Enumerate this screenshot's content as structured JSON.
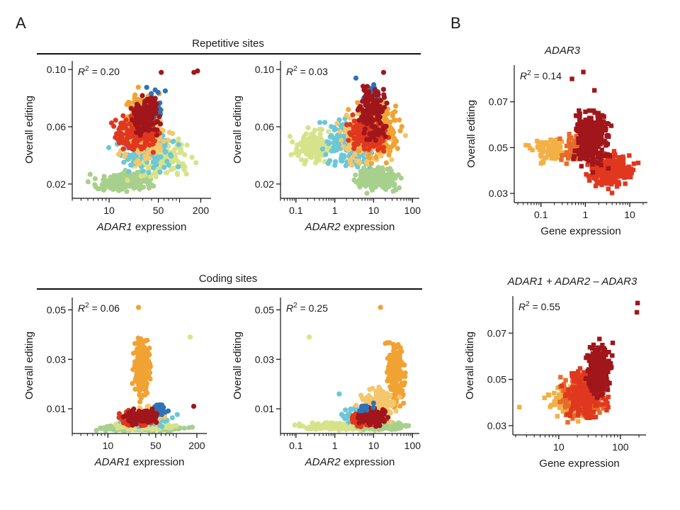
{
  "panel_labels": {
    "a": "A",
    "b": "B"
  },
  "group_titles": {
    "repetitive": "Repetitive sites",
    "coding": "Coding sites"
  },
  "chart_data": [
    {
      "id": "rep-adar1",
      "type": "scatter",
      "title": "",
      "subtitle": "",
      "r2_label": "R",
      "r2_value": "0.20",
      "xlabel_italic": "ADAR1",
      "xlabel_rest": " expression",
      "ylabel": "Overall editing",
      "xscale": "log",
      "xlim": [
        3,
        280
      ],
      "ylim": [
        0.01,
        0.106
      ],
      "xticks": [
        10,
        50,
        200
      ],
      "xtick_labels": [
        "10",
        "50",
        "200"
      ],
      "yticks": [
        0.02,
        0.06,
        0.1
      ],
      "ytick_labels": [
        "0.02",
        "0.06",
        "0.10"
      ],
      "marker": "circle",
      "clusters": [
        {
          "color": "#a8d08d",
          "x": [
            4.5,
            60
          ],
          "y": [
            0.012,
            0.03
          ],
          "n": 220,
          "seed": 11
        },
        {
          "color": "#d7e38a",
          "x": [
            12,
            190
          ],
          "y": [
            0.02,
            0.058
          ],
          "n": 170,
          "seed": 12
        },
        {
          "color": "#6cc7d6",
          "x": [
            8,
            120
          ],
          "y": [
            0.025,
            0.065
          ],
          "n": 120,
          "seed": 13
        },
        {
          "color": "#f5c66b",
          "x": [
            10,
            90
          ],
          "y": [
            0.03,
            0.078
          ],
          "n": 170,
          "seed": 14
        },
        {
          "color": "#f0a233",
          "x": [
            15,
            60
          ],
          "y": [
            0.045,
            0.092
          ],
          "n": 150,
          "seed": 15
        },
        {
          "color": "#2f72b8",
          "x": [
            30,
            70
          ],
          "y": [
            0.06,
            0.092
          ],
          "n": 30,
          "seed": 16
        },
        {
          "color": "#e0381f",
          "x": [
            10,
            60
          ],
          "y": [
            0.038,
            0.072
          ],
          "n": 170,
          "seed": 17
        },
        {
          "color": "#a0161b",
          "x": [
            18,
            60
          ],
          "y": [
            0.05,
            0.085
          ],
          "n": 150,
          "seed": 18
        }
      ],
      "points": [
        {
          "x": 160,
          "y": 0.098,
          "color": "#a0161b"
        },
        {
          "x": 180,
          "y": 0.099,
          "color": "#a0161b"
        },
        {
          "x": 55,
          "y": 0.098,
          "color": "#a0161b"
        }
      ]
    },
    {
      "id": "rep-adar2",
      "type": "scatter",
      "title": "",
      "subtitle": "",
      "r2_label": "R",
      "r2_value": "0.03",
      "xlabel_italic": "ADAR2",
      "xlabel_rest": " expression",
      "ylabel": "Overall editing",
      "xscale": "log",
      "xlim": [
        0.04,
        150
      ],
      "ylim": [
        0.01,
        0.106
      ],
      "xticks": [
        0.1,
        1,
        10,
        100
      ],
      "xtick_labels": [
        "0.1",
        "1",
        "10",
        "100"
      ],
      "yticks": [
        0.02,
        0.06,
        0.1
      ],
      "ytick_labels": [
        "0.02",
        "0.06",
        "0.10"
      ],
      "marker": "circle",
      "clusters": [
        {
          "color": "#d7e38a",
          "x": [
            0.06,
            1.5
          ],
          "y": [
            0.03,
            0.062
          ],
          "n": 150,
          "seed": 21
        },
        {
          "color": "#6cc7d6",
          "x": [
            0.3,
            25
          ],
          "y": [
            0.025,
            0.072
          ],
          "n": 170,
          "seed": 22
        },
        {
          "color": "#a8d08d",
          "x": [
            2,
            70
          ],
          "y": [
            0.012,
            0.035
          ],
          "n": 200,
          "seed": 23
        },
        {
          "color": "#f5c66b",
          "x": [
            0.7,
            70
          ],
          "y": [
            0.028,
            0.075
          ],
          "n": 170,
          "seed": 24
        },
        {
          "color": "#f0a233",
          "x": [
            2,
            80
          ],
          "y": [
            0.03,
            0.085
          ],
          "n": 200,
          "seed": 25
        },
        {
          "color": "#2f72b8",
          "x": [
            4,
            25
          ],
          "y": [
            0.07,
            0.095
          ],
          "n": 25,
          "seed": 26
        },
        {
          "color": "#e0381f",
          "x": [
            1.5,
            30
          ],
          "y": [
            0.04,
            0.07
          ],
          "n": 170,
          "seed": 27
        },
        {
          "color": "#a0161b",
          "x": [
            3,
            30
          ],
          "y": [
            0.045,
            0.095
          ],
          "n": 140,
          "seed": 28
        }
      ],
      "points": [
        {
          "x": 18,
          "y": 0.098,
          "color": "#a0161b"
        },
        {
          "x": 3.5,
          "y": 0.094,
          "color": "#2f72b8"
        }
      ]
    },
    {
      "id": "adar3",
      "type": "scatter",
      "title": "ADAR3",
      "subtitle": "",
      "r2_label": "R",
      "r2_value": "0.14",
      "xlabel_italic": "",
      "xlabel_rest": "Gene expression",
      "ylabel": "Overall editing",
      "xscale": "log",
      "xlim": [
        0.025,
        25
      ],
      "ylim": [
        0.026,
        0.086
      ],
      "xticks": [
        0.1,
        1,
        10
      ],
      "xtick_labels": [
        "0.1",
        "1",
        "10"
      ],
      "yticks": [
        0.03,
        0.05,
        0.07
      ],
      "ytick_labels": [
        "0.03",
        "0.05",
        "0.07"
      ],
      "marker": "square",
      "clusters": [
        {
          "color": "#f3b045",
          "x": [
            0.04,
            0.6
          ],
          "y": [
            0.042,
            0.056
          ],
          "n": 80,
          "seed": 31
        },
        {
          "color": "#e86a2a",
          "x": [
            0.2,
            1.5
          ],
          "y": [
            0.04,
            0.06
          ],
          "n": 70,
          "seed": 32
        },
        {
          "color": "#e0381f",
          "x": [
            0.8,
            18
          ],
          "y": [
            0.03,
            0.05
          ],
          "n": 260,
          "seed": 33
        },
        {
          "color": "#a0161b",
          "x": [
            0.4,
            5
          ],
          "y": [
            0.038,
            0.07
          ],
          "n": 280,
          "seed": 34
        }
      ],
      "points": [
        {
          "x": 0.9,
          "y": 0.083,
          "color": "#a0161b"
        },
        {
          "x": 0.5,
          "y": 0.08,
          "color": "#a0161b"
        },
        {
          "x": 1.6,
          "y": 0.075,
          "color": "#a0161b"
        }
      ]
    },
    {
      "id": "cod-adar1",
      "type": "scatter",
      "title": "",
      "subtitle": "",
      "r2_label": "R",
      "r2_value": "0.06",
      "xlabel_italic": "ADAR1",
      "xlabel_rest": " expression",
      "ylabel": "Overall editing",
      "xscale": "log",
      "xlim": [
        3,
        280
      ],
      "ylim": [
        0.0,
        0.055
      ],
      "xticks": [
        10,
        50,
        200
      ],
      "xtick_labels": [
        "10",
        "50",
        "200"
      ],
      "yticks": [
        0.01,
        0.03,
        0.05
      ],
      "ytick_labels": [
        "0.01",
        "0.03",
        "0.05"
      ],
      "marker": "circle",
      "clusters": [
        {
          "color": "#a8d08d",
          "x": [
            4.5,
            220
          ],
          "y": [
            0.0008,
            0.0035
          ],
          "n": 220,
          "seed": 41
        },
        {
          "color": "#d7e38a",
          "x": [
            8,
            150
          ],
          "y": [
            0.001,
            0.005
          ],
          "n": 150,
          "seed": 42
        },
        {
          "color": "#6cc7d6",
          "x": [
            10,
            120
          ],
          "y": [
            0.002,
            0.01
          ],
          "n": 90,
          "seed": 43
        },
        {
          "color": "#f0a233",
          "x": [
            22,
            45
          ],
          "y": [
            0.01,
            0.042
          ],
          "n": 230,
          "seed": 44
        },
        {
          "color": "#f5c66b",
          "x": [
            12,
            90
          ],
          "y": [
            0.002,
            0.012
          ],
          "n": 140,
          "seed": 45
        },
        {
          "color": "#2f72b8",
          "x": [
            40,
            80
          ],
          "y": [
            0.006,
            0.013
          ],
          "n": 25,
          "seed": 46
        },
        {
          "color": "#e0381f",
          "x": [
            12,
            70
          ],
          "y": [
            0.002,
            0.01
          ],
          "n": 130,
          "seed": 47
        },
        {
          "color": "#a0161b",
          "x": [
            15,
            70
          ],
          "y": [
            0.003,
            0.011
          ],
          "n": 130,
          "seed": 48
        }
      ],
      "points": [
        {
          "x": 28,
          "y": 0.051,
          "color": "#f0a233"
        },
        {
          "x": 160,
          "y": 0.039,
          "color": "#d7e38a"
        },
        {
          "x": 180,
          "y": 0.011,
          "color": "#a0161b"
        }
      ]
    },
    {
      "id": "cod-adar2",
      "type": "scatter",
      "title": "",
      "subtitle": "",
      "r2_label": "R",
      "r2_value": "0.25",
      "xlabel_italic": "ADAR2",
      "xlabel_rest": " expression",
      "ylabel": "Overall editing",
      "xscale": "log",
      "xlim": [
        0.04,
        150
      ],
      "ylim": [
        0.0,
        0.055
      ],
      "xticks": [
        0.1,
        1,
        10,
        100
      ],
      "xtick_labels": [
        "0.1",
        "1",
        "10",
        "100"
      ],
      "yticks": [
        0.01,
        0.03,
        0.05
      ],
      "ytick_labels": [
        "0.01",
        "0.03",
        "0.05"
      ],
      "marker": "circle",
      "clusters": [
        {
          "color": "#d7e38a",
          "x": [
            0.06,
            30
          ],
          "y": [
            0.0008,
            0.005
          ],
          "n": 220,
          "seed": 51
        },
        {
          "color": "#a8d08d",
          "x": [
            3,
            100
          ],
          "y": [
            0.001,
            0.005
          ],
          "n": 150,
          "seed": 52
        },
        {
          "color": "#6cc7d6",
          "x": [
            1,
            15
          ],
          "y": [
            0.003,
            0.012
          ],
          "n": 60,
          "seed": 53
        },
        {
          "color": "#f0a233",
          "x": [
            18,
            70
          ],
          "y": [
            0.008,
            0.04
          ],
          "n": 240,
          "seed": 54
        },
        {
          "color": "#f5c66b",
          "x": [
            3,
            60
          ],
          "y": [
            0.003,
            0.02
          ],
          "n": 140,
          "seed": 55
        },
        {
          "color": "#e0381f",
          "x": [
            2,
            25
          ],
          "y": [
            0.002,
            0.01
          ],
          "n": 140,
          "seed": 56
        },
        {
          "color": "#a0161b",
          "x": [
            3,
            30
          ],
          "y": [
            0.002,
            0.012
          ],
          "n": 140,
          "seed": 57
        },
        {
          "color": "#2f72b8",
          "x": [
            4,
            12
          ],
          "y": [
            0.008,
            0.013
          ],
          "n": 15,
          "seed": 58
        }
      ],
      "points": [
        {
          "x": 15,
          "y": 0.051,
          "color": "#f0a233"
        },
        {
          "x": 0.22,
          "y": 0.039,
          "color": "#d7e38a"
        },
        {
          "x": 1.3,
          "y": 0.016,
          "color": "#6cc7d6"
        }
      ]
    },
    {
      "id": "combined",
      "type": "scatter",
      "title": "ADAR1 + ADAR2 – ADAR3",
      "subtitle": "",
      "r2_label": "R",
      "r2_value": "0.55",
      "xlabel_italic": "",
      "xlabel_rest": "Gene expression",
      "ylabel": "Overall editing",
      "xscale": "log",
      "xlim": [
        1.8,
        260
      ],
      "ylim": [
        0.026,
        0.086
      ],
      "xticks": [
        10,
        100
      ],
      "xtick_labels": [
        "10",
        "100"
      ],
      "yticks": [
        0.03,
        0.05,
        0.07
      ],
      "ytick_labels": [
        "0.03",
        "0.05",
        "0.07"
      ],
      "marker": "square",
      "clusters": [
        {
          "color": "#f3b045",
          "x": [
            5,
            70
          ],
          "y": [
            0.03,
            0.05
          ],
          "n": 160,
          "seed": 61
        },
        {
          "color": "#e86a2a",
          "x": [
            8,
            80
          ],
          "y": [
            0.03,
            0.055
          ],
          "n": 200,
          "seed": 62
        },
        {
          "color": "#e0381f",
          "x": [
            10,
            80
          ],
          "y": [
            0.03,
            0.058
          ],
          "n": 240,
          "seed": 63
        },
        {
          "color": "#a0161b",
          "x": [
            25,
            85
          ],
          "y": [
            0.038,
            0.07
          ],
          "n": 220,
          "seed": 64
        }
      ],
      "points": [
        {
          "x": 190,
          "y": 0.083,
          "color": "#a0161b"
        },
        {
          "x": 185,
          "y": 0.079,
          "color": "#a0161b"
        },
        {
          "x": 2.3,
          "y": 0.038,
          "color": "#f3b045"
        }
      ]
    }
  ]
}
